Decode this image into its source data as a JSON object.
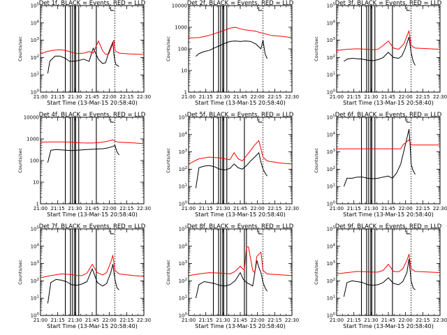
{
  "figure": {
    "xlabel": "Start Time (13-Mar-15 20:58:40)",
    "ylabel": "Counts/sec",
    "x_tick_labels": [
      "21:00",
      "21:15",
      "21:30",
      "21:45",
      "22:00",
      "22:15",
      "22:30"
    ],
    "colors": {
      "events": "#000000",
      "lld": "#ff0000"
    }
  },
  "chart_data": [
    {
      "type": "line",
      "title": "Det 1f, BLACK = Events, RED = LLD",
      "xlabel": "Start Time (13-Mar-15 20:58:40)",
      "ylabel": "Counts/sec",
      "xlim": [
        0,
        100
      ],
      "yscale": "log",
      "ylim": [
        1,
        100000
      ],
      "y_tick_labels": [
        "10^0",
        "10^1",
        "10^2",
        "10^3",
        "10^4",
        "10^5"
      ],
      "vlines_solid": [
        24,
        29,
        31,
        33,
        34,
        37,
        54
      ],
      "vlines_dotted": [
        72
      ],
      "series": [
        {
          "name": "BLACK = Events",
          "color": "#000000",
          "x": [
            7,
            9,
            14,
            19,
            24,
            28,
            31,
            36,
            42,
            47,
            51,
            56,
            60,
            63,
            66,
            70,
            71,
            72,
            73,
            76
          ],
          "y": [
            12,
            60,
            120,
            120,
            90,
            60,
            60,
            65,
            80,
            60,
            350,
            80,
            45,
            50,
            200,
            800,
            150,
            60,
            40,
            30
          ]
        },
        {
          "name": "RED = LLD",
          "color": "#ff0000",
          "x": [
            0,
            6,
            12,
            18,
            24,
            30,
            35,
            42,
            47,
            51,
            56,
            60,
            63,
            66,
            69,
            71,
            72,
            76,
            86,
            100
          ],
          "y": [
            160,
            220,
            260,
            280,
            260,
            200,
            170,
            180,
            220,
            180,
            900,
            250,
            150,
            160,
            450,
            1000,
            250,
            180,
            160,
            150
          ]
        }
      ]
    },
    {
      "type": "line",
      "title": "Det 2f, BLACK = Events, RED = LLD",
      "xlabel": "Start Time (13-Mar-15 20:58:40)",
      "ylabel": "Counts/sec",
      "xlim": [
        0,
        100
      ],
      "yscale": "log",
      "ylim": [
        1,
        10000
      ],
      "y_tick_labels": [
        "1",
        "10",
        "100",
        "1000",
        "10000"
      ],
      "vlines_solid": [
        24,
        29,
        31,
        33,
        34,
        37
      ],
      "vlines_dotted": [
        72
      ],
      "series": [
        {
          "name": "BLACK = Events",
          "color": "#000000",
          "x": [
            7,
            10,
            15,
            20,
            25,
            30,
            35,
            40,
            45,
            50,
            55,
            60,
            65,
            70,
            72,
            74,
            76
          ],
          "y": [
            45,
            60,
            75,
            85,
            110,
            140,
            180,
            220,
            230,
            220,
            230,
            220,
            170,
            100,
            250,
            60,
            35
          ]
        },
        {
          "name": "RED = LLD",
          "color": "#ff0000",
          "x": [
            0,
            10,
            20,
            30,
            40,
            45,
            50,
            55,
            60,
            65,
            70,
            80,
            90,
            100
          ],
          "y": [
            320,
            330,
            420,
            600,
            900,
            1000,
            850,
            750,
            700,
            650,
            550,
            420,
            380,
            330
          ]
        }
      ]
    },
    {
      "type": "line",
      "title": "Det 3f, BLACK = Events, RED = LLD",
      "xlabel": "Start Time (13-Mar-15 20:58:40)",
      "ylabel": "Counts/sec",
      "xlim": [
        0,
        100
      ],
      "yscale": "log",
      "ylim": [
        1,
        100000
      ],
      "y_tick_labels": [
        "10^0",
        "10^1",
        "10^2",
        "10^3",
        "10^4",
        "10^5"
      ],
      "vlines_solid": [
        24,
        29,
        31,
        33,
        34,
        37,
        54
      ],
      "vlines_dotted": [
        72
      ],
      "series": [
        {
          "name": "BLACK = Events",
          "color": "#000000",
          "x": [
            7,
            10,
            15,
            20,
            25,
            30,
            35,
            40,
            45,
            50,
            55,
            60,
            63,
            66,
            70,
            72,
            74,
            76
          ],
          "y": [
            60,
            80,
            90,
            85,
            80,
            70,
            65,
            75,
            100,
            200,
            100,
            90,
            120,
            300,
            1500,
            200,
            60,
            35
          ]
        },
        {
          "name": "RED = LLD",
          "color": "#ff0000",
          "x": [
            0,
            10,
            20,
            30,
            35,
            40,
            45,
            50,
            55,
            60,
            65,
            70,
            72,
            76,
            90,
            100
          ],
          "y": [
            250,
            300,
            320,
            300,
            280,
            300,
            500,
            900,
            350,
            300,
            600,
            3500,
            500,
            350,
            320,
            300
          ]
        }
      ]
    },
    {
      "type": "line",
      "title": "Det 4f, BLACK = Events, RED = LLD",
      "xlabel": "Start Time (13-Mar-15 20:58:40)",
      "ylabel": "Counts/sec",
      "xlim": [
        0,
        100
      ],
      "yscale": "log",
      "ylim": [
        1,
        10000
      ],
      "y_tick_labels": [
        "1",
        "10",
        "100",
        "1000",
        "10000"
      ],
      "vlines_solid": [
        24,
        29,
        31,
        33,
        34,
        37,
        54
      ],
      "vlines_dotted": [
        72
      ],
      "series": [
        {
          "name": "BLACK = Events",
          "color": "#000000",
          "x": [
            7,
            10,
            15,
            20,
            25,
            30,
            35,
            40,
            45,
            50,
            55,
            60,
            65,
            70,
            72,
            74,
            76
          ],
          "y": [
            80,
            300,
            320,
            310,
            300,
            290,
            300,
            310,
            320,
            330,
            340,
            350,
            380,
            450,
            500,
            250,
            180
          ]
        },
        {
          "name": "RED = LLD",
          "color": "#ff0000",
          "x": [
            0,
            10,
            20,
            30,
            40,
            50,
            60,
            65,
            70,
            72,
            76,
            90,
            100
          ],
          "y": [
            700,
            720,
            720,
            700,
            650,
            640,
            700,
            780,
            900,
            780,
            700,
            650,
            600
          ]
        }
      ]
    },
    {
      "type": "line",
      "title": "Det 5f, BLACK = Events, RED = LLD",
      "xlabel": "Start Time (13-Mar-15 20:58:40)",
      "ylabel": "Counts/sec",
      "xlim": [
        0,
        100
      ],
      "yscale": "log",
      "ylim": [
        1,
        100000
      ],
      "y_tick_labels": [
        "10^0",
        "10^1",
        "10^2",
        "10^3",
        "10^4",
        "10^5"
      ],
      "vlines_solid": [
        24,
        29,
        31,
        33,
        34,
        37,
        54
      ],
      "vlines_dotted": [
        72
      ],
      "series": [
        {
          "name": "BLACK = Events",
          "color": "#000000",
          "x": [
            7,
            10,
            15,
            20,
            25,
            30,
            35,
            40,
            44,
            48,
            52,
            56,
            60,
            64,
            68,
            70,
            72,
            74,
            76
          ],
          "y": [
            8,
            120,
            150,
            160,
            140,
            100,
            90,
            110,
            200,
            120,
            100,
            160,
            300,
            500,
            900,
            250,
            100,
            60,
            40
          ]
        },
        {
          "name": "RED = LLD",
          "color": "#ff0000",
          "x": [
            0,
            10,
            20,
            30,
            40,
            44,
            48,
            52,
            56,
            60,
            64,
            68,
            70,
            72,
            76,
            90,
            100
          ],
          "y": [
            200,
            400,
            500,
            450,
            350,
            900,
            400,
            300,
            600,
            1200,
            2500,
            4500,
            1500,
            500,
            300,
            220,
            200
          ]
        }
      ]
    },
    {
      "type": "line",
      "title": "Det 6f, BLACK = Events, RED = LLD",
      "xlabel": "Start Time (13-Mar-15 20:58:40)",
      "ylabel": "Counts/sec",
      "xlim": [
        0,
        100
      ],
      "yscale": "log",
      "ylim": [
        1,
        100000
      ],
      "y_tick_labels": [
        "10^0",
        "10^1",
        "10^2",
        "10^3",
        "10^4",
        "10^5"
      ],
      "vlines_solid": [
        24,
        29,
        31,
        33,
        34,
        37,
        54
      ],
      "vlines_dotted": [
        72
      ],
      "series": [
        {
          "name": "BLACK = Events",
          "color": "#000000",
          "x": [
            7,
            10,
            15,
            20,
            25,
            30,
            35,
            40,
            45,
            50,
            54,
            58,
            62,
            66,
            70,
            71,
            72,
            74,
            76
          ],
          "y": [
            10,
            30,
            30,
            35,
            35,
            30,
            28,
            30,
            35,
            40,
            30,
            60,
            200,
            2000,
            20000,
            3000,
            200,
            80,
            50
          ]
        },
        {
          "name": "RED = LLD",
          "color": "#ff0000",
          "x": [
            0,
            54,
            62,
            64,
            70,
            72,
            100
          ],
          "y": [
            1500,
            1500,
            1500,
            2500,
            5000,
            2500,
            2500
          ]
        }
      ]
    },
    {
      "type": "line",
      "title": "Det 7f, BLACK = Events, RED = LLD",
      "xlabel": "Start Time (13-Mar-15 20:58:40)",
      "ylabel": "Counts/sec",
      "xlim": [
        0,
        100
      ],
      "yscale": "log",
      "ylim": [
        1,
        100000
      ],
      "y_tick_labels": [
        "10^0",
        "10^1",
        "10^2",
        "10^3",
        "10^4",
        "10^5"
      ],
      "vlines_solid": [
        24,
        29,
        31,
        33,
        34,
        37,
        54
      ],
      "vlines_dotted": [
        72
      ],
      "series": [
        {
          "name": "BLACK = Events",
          "color": "#000000",
          "x": [
            7,
            10,
            15,
            20,
            25,
            30,
            35,
            40,
            45,
            50,
            55,
            60,
            64,
            68,
            70,
            72,
            74,
            76
          ],
          "y": [
            5,
            80,
            120,
            110,
            90,
            60,
            55,
            65,
            90,
            500,
            80,
            50,
            70,
            300,
            900,
            120,
            40,
            30
          ]
        },
        {
          "name": "RED = LLD",
          "color": "#ff0000",
          "x": [
            0,
            10,
            20,
            30,
            35,
            40,
            45,
            50,
            55,
            60,
            64,
            68,
            70,
            72,
            76,
            90,
            100
          ],
          "y": [
            150,
            200,
            250,
            230,
            200,
            200,
            280,
            900,
            300,
            220,
            300,
            1200,
            3000,
            400,
            250,
            200,
            180
          ]
        }
      ]
    },
    {
      "type": "line",
      "title": "Det 8f, BLACK = Events, RED = LLD",
      "xlabel": "Start Time (13-Mar-15 20:58:40)",
      "ylabel": "Counts/sec",
      "xlim": [
        0,
        100
      ],
      "yscale": "log",
      "ylim": [
        1,
        100000
      ],
      "y_tick_labels": [
        "10^0",
        "10^1",
        "10^2",
        "10^3",
        "10^4",
        "10^5"
      ],
      "vlines_solid": [
        24,
        29,
        31,
        33,
        34,
        37,
        54,
        56
      ],
      "vlines_dotted": [
        72
      ],
      "series": [
        {
          "name": "BLACK = Events",
          "color": "#000000",
          "x": [
            7,
            10,
            15,
            20,
            25,
            30,
            35,
            40,
            45,
            50,
            53,
            56,
            60,
            62,
            66,
            68,
            70,
            72,
            74,
            76
          ],
          "y": [
            10,
            60,
            90,
            80,
            70,
            55,
            50,
            60,
            100,
            300,
            120,
            80,
            60,
            50,
            1500,
            600,
            300,
            80,
            40,
            25
          ]
        },
        {
          "name": "RED = LLD",
          "color": "#ff0000",
          "x": [
            0,
            10,
            20,
            30,
            40,
            45,
            50,
            54,
            56,
            58,
            62,
            64,
            66,
            68,
            70,
            72,
            76,
            90,
            100
          ],
          "y": [
            200,
            250,
            300,
            280,
            250,
            350,
            700,
            400,
            9000,
            9000,
            400,
            300,
            2500,
            3500,
            4500,
            400,
            250,
            220,
            200
          ]
        }
      ]
    },
    {
      "type": "line",
      "title": "Det 9f, BLACK = Events, RED = LLD",
      "xlabel": "Start Time (13-Mar-15 20:58:40)",
      "ylabel": "Counts/sec",
      "xlim": [
        0,
        100
      ],
      "yscale": "log",
      "ylim": [
        1,
        100000
      ],
      "y_tick_labels": [
        "10^0",
        "10^1",
        "10^2",
        "10^3",
        "10^4",
        "10^5"
      ],
      "vlines_solid": [
        24,
        29,
        31,
        33,
        34,
        37,
        54
      ],
      "vlines_dotted": [
        72
      ],
      "series": [
        {
          "name": "BLACK = Events",
          "color": "#000000",
          "x": [
            7,
            10,
            15,
            20,
            25,
            30,
            35,
            40,
            45,
            50,
            55,
            60,
            64,
            68,
            70,
            72,
            74,
            76
          ],
          "y": [
            12,
            80,
            100,
            90,
            80,
            60,
            55,
            60,
            80,
            150,
            70,
            60,
            90,
            300,
            1800,
            100,
            40,
            30
          ]
        },
        {
          "name": "RED = LLD",
          "color": "#ff0000",
          "x": [
            0,
            10,
            20,
            30,
            35,
            40,
            45,
            50,
            55,
            60,
            64,
            68,
            70,
            72,
            76,
            90,
            100
          ],
          "y": [
            250,
            300,
            350,
            330,
            320,
            320,
            400,
            900,
            350,
            330,
            500,
            1500,
            3500,
            500,
            350,
            320,
            300
          ]
        }
      ]
    }
  ]
}
